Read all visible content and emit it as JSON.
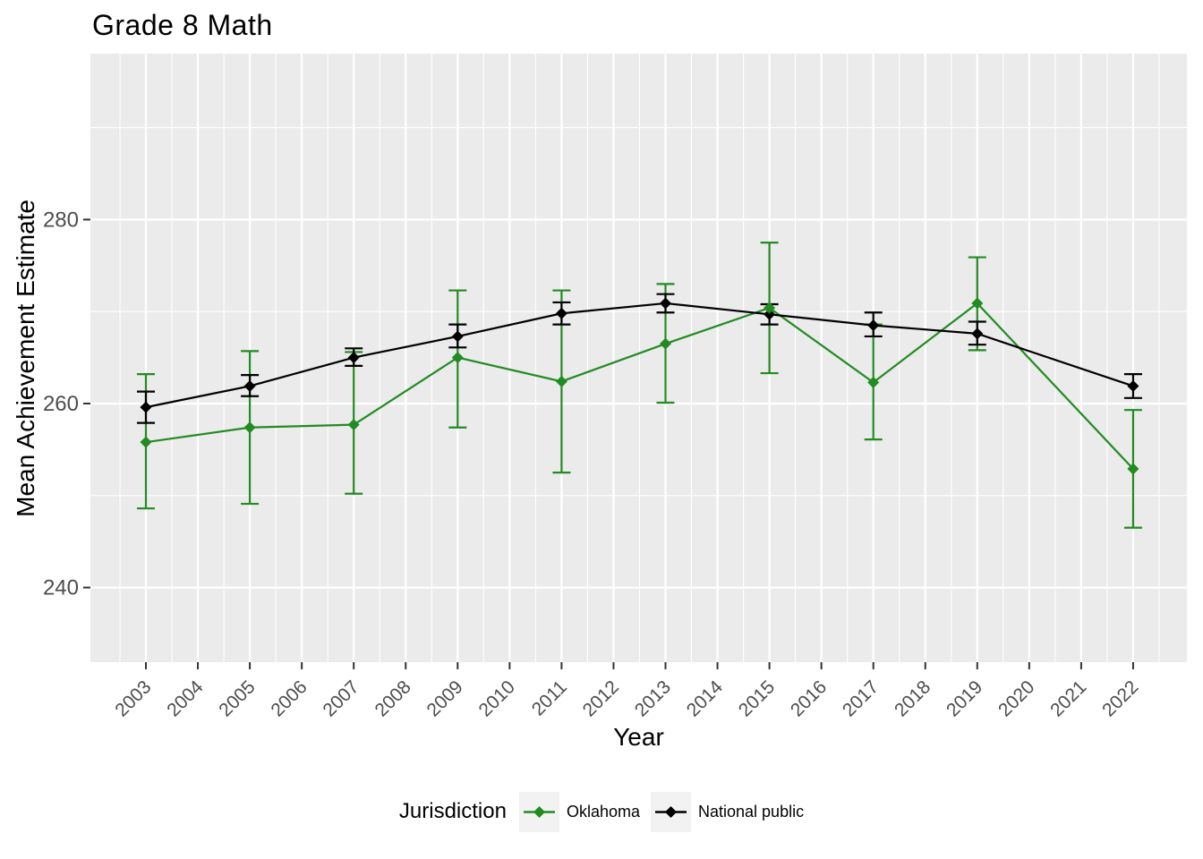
{
  "title": "Grade 8 Math",
  "x_axis": {
    "label": "Year",
    "tick_labels": [
      "2003",
      "2004",
      "2005",
      "2006",
      "2007",
      "2008",
      "2009",
      "2010",
      "2011",
      "2012",
      "2013",
      "2014",
      "2015",
      "2016",
      "2017",
      "2018",
      "2019",
      "2020",
      "2021",
      "2022"
    ]
  },
  "y_axis": {
    "label": "Mean Achievement Estimate",
    "tick_labels": [
      "240",
      "260",
      "280"
    ]
  },
  "legend": {
    "title": "Jurisdiction",
    "items": [
      {
        "label": "Oklahoma",
        "color": "#228B22"
      },
      {
        "label": "National public",
        "color": "#000000"
      }
    ]
  },
  "colors": {
    "panel_bg": "#EBEBEB",
    "grid": "#FFFFFF",
    "tick_mark": "#333333",
    "tick_text": "#4D4D4D",
    "legend_key_bg": "#F2F2F2",
    "oklahoma": "#228B22",
    "national_public": "#000000"
  },
  "chart_data": {
    "type": "line",
    "title": "Grade 8 Math",
    "xlabel": "Year",
    "ylabel": "Mean Achievement Estimate",
    "legend_title": "Jurisdiction",
    "legend_position": "bottom",
    "grid": "white major and minor gridlines on gray panel",
    "x_ticks": [
      2003,
      2004,
      2005,
      2006,
      2007,
      2008,
      2009,
      2010,
      2011,
      2012,
      2013,
      2014,
      2015,
      2016,
      2017,
      2018,
      2019,
      2020,
      2021,
      2022
    ],
    "y_ticks": [
      240,
      260,
      280
    ],
    "y_minor_ticks": [
      250,
      270,
      290
    ],
    "xlim": [
      2002,
      2023
    ],
    "ylim": [
      232,
      298
    ],
    "x": [
      2003,
      2005,
      2007,
      2009,
      2011,
      2013,
      2015,
      2017,
      2019,
      2022
    ],
    "series": [
      {
        "name": "Oklahoma",
        "color": "#228B22",
        "values": [
          255.8,
          257.4,
          257.7,
          265.0,
          262.4,
          266.5,
          270.4,
          262.3,
          270.9,
          252.9
        ],
        "err_low": [
          248.6,
          249.1,
          250.2,
          257.4,
          252.5,
          260.1,
          263.3,
          256.1,
          265.8,
          246.5
        ],
        "err_high": [
          263.2,
          265.7,
          265.6,
          272.3,
          272.3,
          273.0,
          277.5,
          268.6,
          275.9,
          259.3
        ]
      },
      {
        "name": "National public",
        "color": "#000000",
        "values": [
          259.6,
          261.9,
          265.0,
          267.3,
          269.8,
          270.9,
          269.7,
          268.5,
          267.6,
          261.9
        ],
        "err_low": [
          257.9,
          260.8,
          264.1,
          266.1,
          268.6,
          269.9,
          268.6,
          267.3,
          266.4,
          260.6
        ],
        "err_high": [
          261.3,
          263.1,
          266.0,
          268.6,
          271.0,
          271.9,
          270.8,
          269.9,
          268.9,
          263.2
        ]
      }
    ]
  }
}
